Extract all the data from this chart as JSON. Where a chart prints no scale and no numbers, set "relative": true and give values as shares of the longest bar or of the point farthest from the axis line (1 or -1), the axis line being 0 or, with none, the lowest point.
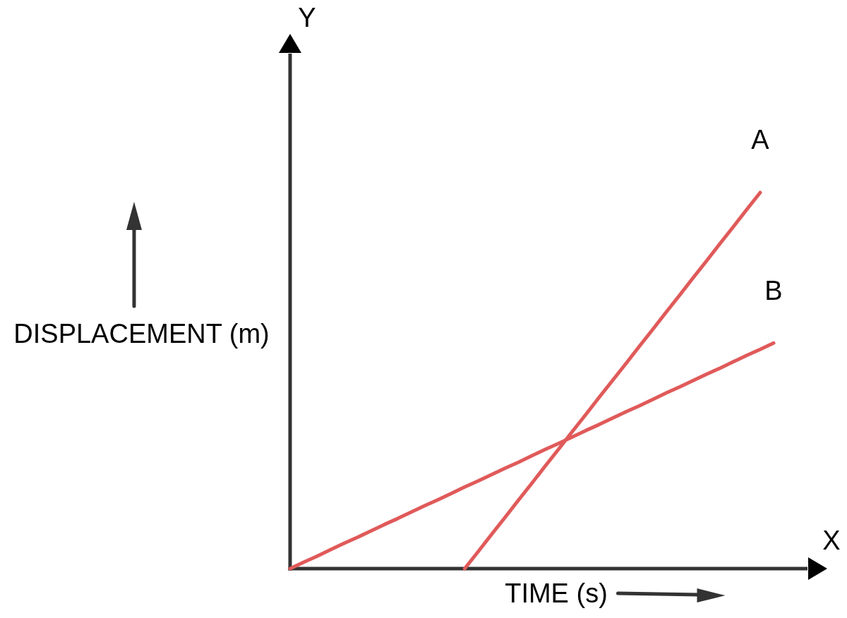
{
  "chart_data": {
    "type": "line",
    "relative": true,
    "xlabel": "TIME (s)",
    "ylabel": "DISPLACEMENT (m)",
    "annotations": [
      "Y",
      "X"
    ],
    "categories": [
      null,
      null,
      null,
      null,
      null,
      null,
      null,
      null,
      null,
      null,
      null,
      null,
      null,
      null,
      null,
      null,
      null,
      null,
      null,
      null,
      null,
      null,
      null,
      null,
      null,
      null,
      null,
      null,
      null,
      null,
      null,
      null,
      null,
      null,
      null,
      null,
      null
    ],
    "series": [
      {
        "name": "A",
        "color": "#e05a5a",
        "values": [
          null,
          null,
          null,
          null,
          null,
          null,
          null,
          null,
          null,
          null,
          null,
          null,
          null,
          0,
          0.045,
          0.091,
          0.136,
          0.182,
          0.227,
          0.273,
          0.318,
          0.364,
          0.409,
          0.455,
          0.5,
          0.545,
          0.591,
          0.636,
          0.682,
          0.727,
          0.773,
          0.818,
          0.864,
          0.909,
          0.955,
          1,
          null
        ]
      },
      {
        "name": "B",
        "color": "#e05a5a",
        "values": [
          0,
          0.017,
          0.033,
          0.05,
          0.067,
          0.083,
          0.1,
          0.117,
          0.133,
          0.15,
          0.167,
          0.183,
          0.2,
          0.217,
          0.233,
          0.25,
          0.267,
          0.283,
          0.3,
          0.317,
          0.333,
          0.35,
          0.367,
          0.383,
          0.4,
          0.417,
          0.433,
          0.45,
          0.467,
          0.483,
          0.5,
          0.517,
          0.533,
          0.55,
          0.567,
          0.583,
          0.6
        ]
      }
    ]
  }
}
